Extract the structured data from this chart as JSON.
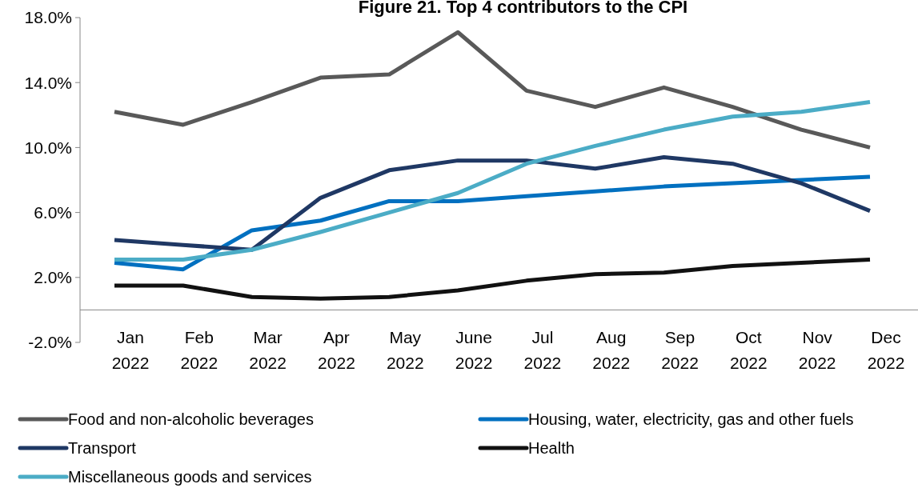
{
  "chart_data": {
    "type": "line",
    "title": "Figure 21. Top 4 contributors to the CPI",
    "categories": [
      "Jan 2022",
      "Feb 2022",
      "Mar 2022",
      "Apr 2022",
      "May 2022",
      "June 2022",
      "Jul 2022",
      "Aug 2022",
      "Sep 2022",
      "Oct 2022",
      "Nov 2022",
      "Dec 2022"
    ],
    "series": [
      {
        "name": "Food and non-alcoholic beverages",
        "color": "#595959",
        "values": [
          12.2,
          11.4,
          12.8,
          14.3,
          14.5,
          17.1,
          13.5,
          12.5,
          13.7,
          12.5,
          11.1,
          10.0
        ]
      },
      {
        "name": "Housing, water, electricity, gas and other fuels",
        "color": "#0070c0",
        "values": [
          2.9,
          2.5,
          4.9,
          5.5,
          6.7,
          6.7,
          7.0,
          7.3,
          7.6,
          7.8,
          8.0,
          8.2
        ]
      },
      {
        "name": "Transport",
        "color": "#1f3864",
        "values": [
          4.3,
          4.0,
          3.7,
          6.9,
          8.6,
          9.2,
          9.2,
          8.7,
          9.4,
          9.0,
          7.8,
          6.1
        ]
      },
      {
        "name": "Health",
        "color": "#111111",
        "values": [
          1.5,
          1.5,
          0.8,
          0.7,
          0.8,
          1.2,
          1.8,
          2.2,
          2.3,
          2.7,
          2.9,
          3.1
        ]
      },
      {
        "name": "Miscellaneous goods and services",
        "color": "#4bacc6",
        "values": [
          3.1,
          3.1,
          3.7,
          4.8,
          6.0,
          7.2,
          9.0,
          10.1,
          11.1,
          11.9,
          12.2,
          12.8
        ]
      }
    ],
    "ylim": [
      -2,
      18
    ],
    "yticks": [
      {
        "value": -2,
        "label": "-2.0%"
      },
      {
        "value": 2,
        "label": "2.0%"
      },
      {
        "value": 6,
        "label": "6.0%"
      },
      {
        "value": 10,
        "label": "10.0%"
      },
      {
        "value": 14,
        "label": "14.0%"
      },
      {
        "value": 18,
        "label": "18.0%"
      }
    ],
    "grid": false,
    "legend": "bottom",
    "marker": "none",
    "line_style": "solid"
  }
}
